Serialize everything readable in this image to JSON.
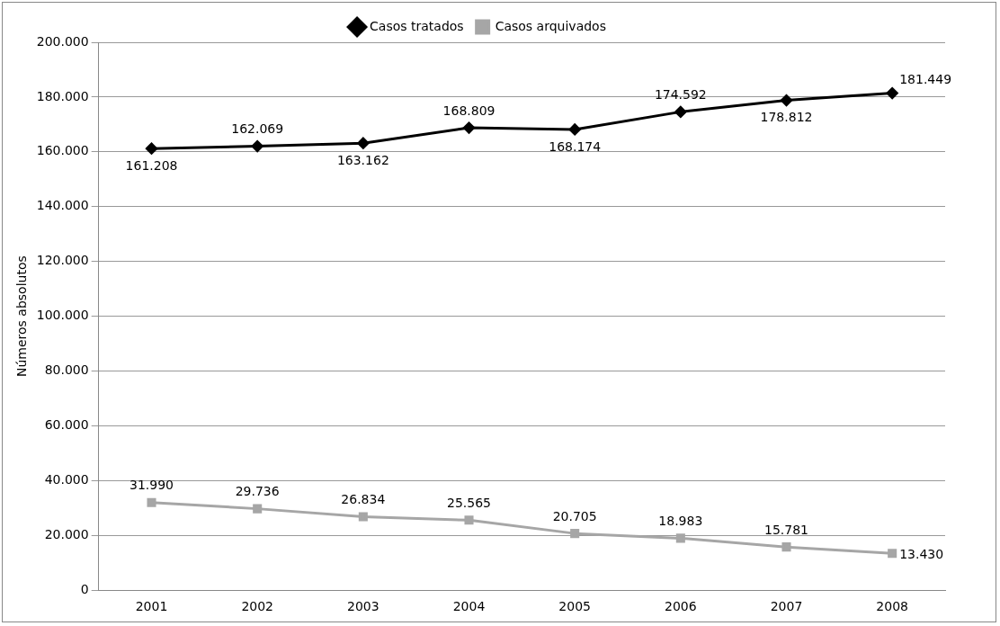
{
  "chart_data": {
    "type": "line",
    "ylabel": "Números absolutos",
    "categories": [
      "2001",
      "2002",
      "2003",
      "2004",
      "2005",
      "2006",
      "2007",
      "2008"
    ],
    "series": [
      {
        "name": "Casos tratados",
        "color": "#000000",
        "marker": "diamond",
        "values": [
          161208,
          162069,
          163162,
          168809,
          168174,
          174592,
          178812,
          181449
        ],
        "value_labels": [
          "161.208",
          "162.069",
          "163.162",
          "168.809",
          "168.174",
          "174.592",
          "178.812",
          "181.449"
        ]
      },
      {
        "name": "Casos arquivados",
        "color": "#a6a6a6",
        "marker": "square",
        "values": [
          31990,
          29736,
          26834,
          25565,
          20705,
          18983,
          15781,
          13430
        ],
        "value_labels": [
          "31.990",
          "29.736",
          "26.834",
          "25.565",
          "20.705",
          "18.983",
          "15.781",
          "13.430"
        ]
      }
    ],
    "ylim": [
      0,
      200000
    ],
    "yticks": [
      {
        "value": 0,
        "label": "0"
      },
      {
        "value": 20000,
        "label": "20.000"
      },
      {
        "value": 40000,
        "label": "40.000"
      },
      {
        "value": 60000,
        "label": "60.000"
      },
      {
        "value": 80000,
        "label": "80.000"
      },
      {
        "value": 100000,
        "label": "100.000"
      },
      {
        "value": 120000,
        "label": "120.000"
      },
      {
        "value": 140000,
        "label": "140.000"
      },
      {
        "value": 160000,
        "label": "160.000"
      },
      {
        "value": 180000,
        "label": "180.000"
      },
      {
        "value": 200000,
        "label": "200.000"
      }
    ],
    "grid": "y",
    "legend": "top",
    "line_style": "solid"
  }
}
